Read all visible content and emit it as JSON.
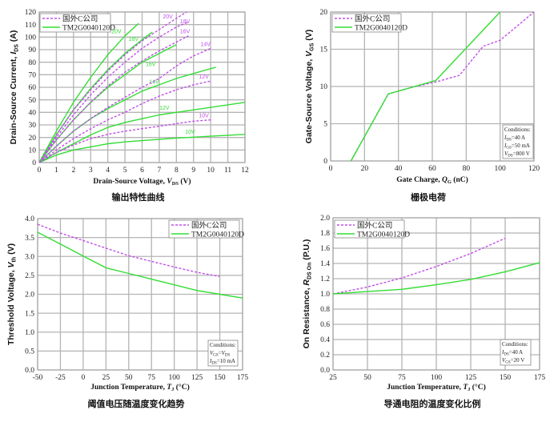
{
  "colors": {
    "competitor": "#c050e8",
    "tm2g": "#33dd33",
    "grid": "#b4b4b4"
  },
  "chart_data": [
    {
      "type": "line",
      "caption": "输出特性曲线",
      "ylabel": {
        "text": "Drain-Source Current, ",
        "var": "I",
        "sub": "DS",
        "unit": " (A)"
      },
      "xlabel": {
        "text": "Drain-Source Voltage, ",
        "var": "V",
        "sub": "DS",
        "unit": " (V)"
      },
      "xlim": [
        0,
        12
      ],
      "ylim": [
        0,
        120
      ],
      "xticks": [
        0,
        1,
        2,
        3,
        4,
        5,
        6,
        7,
        8,
        9,
        10,
        11,
        12
      ],
      "yticks": [
        0,
        10,
        20,
        30,
        40,
        50,
        60,
        70,
        80,
        90,
        100,
        110,
        120
      ],
      "grid": true,
      "legend": {
        "placement": "top-left",
        "entries": [
          "国外C公司",
          "TM2G0040120D"
        ]
      },
      "series": [
        {
          "name": "TM2G0040120D",
          "label": "20V",
          "style": "solid",
          "label_at": [
            4.5,
            103
          ],
          "points": [
            [
              0,
              0
            ],
            [
              1,
              25
            ],
            [
              2,
              48
            ],
            [
              3,
              68
            ],
            [
              4,
              86
            ],
            [
              5,
              101
            ],
            [
              5.8,
              111
            ]
          ]
        },
        {
          "name": "TM2G0040120D",
          "label": "18V",
          "style": "solid",
          "label_at": [
            5.5,
            97
          ],
          "points": [
            [
              0,
              0
            ],
            [
              1,
              22
            ],
            [
              2,
              42
            ],
            [
              3,
              59
            ],
            [
              4,
              74
            ],
            [
              5,
              87
            ],
            [
              6,
              98
            ],
            [
              6.6,
              104
            ]
          ]
        },
        {
          "name": "TM2G0040120D",
          "label": "16V",
          "style": "solid",
          "label_at": [
            6.5,
            77
          ],
          "points": [
            [
              0,
              0
            ],
            [
              1,
              18
            ],
            [
              2,
              34
            ],
            [
              3,
              48
            ],
            [
              4,
              60
            ],
            [
              5,
              70
            ],
            [
              6,
              80
            ],
            [
              7,
              87
            ],
            [
              8,
              94
            ]
          ]
        },
        {
          "name": "TM2G0040120D",
          "label": "14V",
          "style": "solid",
          "label_at": [
            6.7,
            63
          ],
          "points": [
            [
              0,
              0
            ],
            [
              1,
              13
            ],
            [
              2,
              25
            ],
            [
              3,
              35
            ],
            [
              4,
              43
            ],
            [
              5,
              50
            ],
            [
              6,
              57
            ],
            [
              7,
              62
            ],
            [
              8,
              67
            ],
            [
              9,
              71
            ],
            [
              10.3,
              76
            ]
          ]
        },
        {
          "name": "TM2G0040120D",
          "label": "12V",
          "style": "solid",
          "label_at": [
            7.3,
            42
          ],
          "points": [
            [
              0,
              0
            ],
            [
              1,
              8
            ],
            [
              2,
              15
            ],
            [
              3,
              22
            ],
            [
              4,
              28
            ],
            [
              5,
              32
            ],
            [
              6,
              35
            ],
            [
              7,
              38
            ],
            [
              8,
              40
            ],
            [
              9,
              42
            ],
            [
              10,
              44
            ],
            [
              12,
              48
            ]
          ]
        },
        {
          "name": "TM2G0040120D",
          "label": "10V",
          "style": "solid",
          "label_at": [
            8.8,
            23
          ],
          "points": [
            [
              0,
              0
            ],
            [
              1,
              6
            ],
            [
              2,
              10
            ],
            [
              3,
              12.5
            ],
            [
              4,
              15
            ],
            [
              5,
              16.5
            ],
            [
              6,
              17.5
            ],
            [
              8,
              19.5
            ],
            [
              10,
              21
            ],
            [
              12,
              22.5
            ]
          ]
        },
        {
          "name": "国外C公司",
          "label": "20V",
          "style": "dashed",
          "label_at": [
            7.5,
            115
          ],
          "points": [
            [
              0,
              0
            ],
            [
              1,
              22
            ],
            [
              2,
              42
            ],
            [
              3,
              58
            ],
            [
              4,
              73
            ],
            [
              5,
              86
            ],
            [
              6,
              97
            ],
            [
              7,
              106
            ],
            [
              8,
              115
            ],
            [
              8.6,
              120
            ]
          ]
        },
        {
          "name": "国外C公司",
          "label": "18V",
          "style": "dashed",
          "label_at": [
            8.5,
            111
          ],
          "points": [
            [
              0,
              0
            ],
            [
              1,
              20
            ],
            [
              2,
              38
            ],
            [
              3,
              54
            ],
            [
              4,
              68
            ],
            [
              5,
              80
            ],
            [
              6,
              91
            ],
            [
              7,
              100
            ],
            [
              8,
              108
            ],
            [
              8.7,
              112
            ]
          ]
        },
        {
          "name": "国外C公司",
          "label": "16V",
          "style": "dashed",
          "label_at": [
            8.5,
            103
          ],
          "points": [
            [
              0,
              0
            ],
            [
              1,
              18
            ],
            [
              2,
              34
            ],
            [
              3,
              48
            ],
            [
              4,
              61
            ],
            [
              5,
              72
            ],
            [
              6,
              81
            ],
            [
              7,
              89
            ],
            [
              8,
              96
            ],
            [
              8.7,
              101
            ]
          ]
        },
        {
          "name": "国外C公司",
          "label": "14V",
          "style": "dashed",
          "label_at": [
            9.7,
            93
          ],
          "points": [
            [
              0,
              0
            ],
            [
              1,
              13
            ],
            [
              2,
              25
            ],
            [
              3,
              35
            ],
            [
              4,
              44
            ],
            [
              5,
              52
            ],
            [
              6,
              60
            ],
            [
              7,
              67
            ],
            [
              8,
              77
            ],
            [
              9,
              85
            ],
            [
              10,
              91
            ]
          ]
        },
        {
          "name": "国外C公司",
          "label": "12V",
          "style": "dashed",
          "label_at": [
            9.6,
            67
          ],
          "points": [
            [
              0,
              0
            ],
            [
              1,
              10
            ],
            [
              2,
              19
            ],
            [
              3,
              27
            ],
            [
              4,
              34
            ],
            [
              5,
              40
            ],
            [
              6,
              47
            ],
            [
              7,
              53
            ],
            [
              8,
              58
            ],
            [
              9,
              62
            ],
            [
              10,
              65
            ]
          ]
        },
        {
          "name": "国外C公司",
          "label": "10V",
          "style": "dashed",
          "label_at": [
            9.6,
            36
          ],
          "points": [
            [
              0,
              0
            ],
            [
              1,
              8
            ],
            [
              2,
              14
            ],
            [
              3,
              19
            ],
            [
              4,
              22.5
            ],
            [
              5,
              25
            ],
            [
              6,
              27
            ],
            [
              7,
              29
            ],
            [
              8,
              31
            ],
            [
              9,
              33
            ],
            [
              10,
              34
            ]
          ]
        }
      ]
    },
    {
      "type": "line",
      "caption": "栅极电荷",
      "ylabel": {
        "text": "Gate-Source Voltage, ",
        "var": "V",
        "sub": "GS",
        "unit": " (V)"
      },
      "xlabel": {
        "text": "Gate Charge, ",
        "var": "Q",
        "sub": "G",
        "unit": " (nC)"
      },
      "xlim": [
        0,
        120
      ],
      "ylim": [
        0,
        20
      ],
      "xticks": [
        0,
        20,
        40,
        60,
        80,
        100,
        120
      ],
      "yticks": [
        0,
        5,
        10,
        15,
        20
      ],
      "grid": true,
      "legend": {
        "placement": "top-left",
        "entries": [
          "国外C公司",
          "TM2G0040120D"
        ]
      },
      "conditions": [
        {
          "text": "Conditions:"
        },
        {
          "var": "I",
          "sub": "DS",
          "rest": "=40 A"
        },
        {
          "var": "I",
          "sub": "GS",
          "rest": "=50 mA"
        },
        {
          "var": "V",
          "sub": "DS",
          "rest": "=800 V"
        }
      ],
      "series": [
        {
          "name": "国外C公司",
          "style": "dashed",
          "points": [
            [
              12,
              0
            ],
            [
              34,
              9
            ],
            [
              50,
              10
            ],
            [
              62,
              10.6
            ],
            [
              76,
              11.5
            ],
            [
              90,
              15.4
            ],
            [
              100,
              16.2
            ],
            [
              120,
              20
            ]
          ]
        },
        {
          "name": "TM2G0040120D",
          "style": "solid",
          "points": [
            [
              12,
              0
            ],
            [
              34,
              9
            ],
            [
              62,
              10.8
            ],
            [
              100,
              20
            ]
          ]
        }
      ]
    },
    {
      "type": "line",
      "caption": "阈值电压随温度变化趋势",
      "ylabel": {
        "text": "Threshold Voltage, ",
        "var": "V",
        "sub": "th",
        "unit": " (V)"
      },
      "xlabel": {
        "text": "Junction Temperature, ",
        "var": "T",
        "sub": "J",
        "unit": " (°C)"
      },
      "xlim": [
        -50,
        175
      ],
      "ylim": [
        0,
        4
      ],
      "xticks": [
        -50,
        -25,
        0,
        25,
        50,
        75,
        100,
        125,
        150,
        175
      ],
      "yticks": [
        0.0,
        0.5,
        1.0,
        1.5,
        2.0,
        2.5,
        3.0,
        3.5,
        4.0
      ],
      "ytick_decimals": 1,
      "grid": true,
      "legend": {
        "placement": "top-right",
        "entries": [
          "国外C公司",
          "TM2G0040120D"
        ]
      },
      "conditions": [
        {
          "text": "Conditions:"
        },
        {
          "var": "V",
          "sub": "GS",
          "rest": "=",
          "var2": "V",
          "sub2": "DS"
        },
        {
          "var": "I",
          "sub": "DS",
          "rest": "=10 mA"
        }
      ],
      "series": [
        {
          "name": "国外C公司",
          "style": "dashed",
          "points": [
            [
              -50,
              3.85
            ],
            [
              -25,
              3.62
            ],
            [
              0,
              3.42
            ],
            [
              25,
              3.22
            ],
            [
              50,
              3.02
            ],
            [
              75,
              2.87
            ],
            [
              100,
              2.72
            ],
            [
              125,
              2.58
            ],
            [
              150,
              2.47
            ]
          ]
        },
        {
          "name": "TM2G0040120D",
          "style": "solid",
          "points": [
            [
              -50,
              3.64
            ],
            [
              -25,
              3.33
            ],
            [
              0,
              3.01
            ],
            [
              25,
              2.7
            ],
            [
              50,
              2.55
            ],
            [
              75,
              2.4
            ],
            [
              100,
              2.25
            ],
            [
              125,
              2.1
            ],
            [
              150,
              2.0
            ],
            [
              175,
              1.9
            ]
          ]
        }
      ]
    },
    {
      "type": "line",
      "caption": "导通电阻的温度变化比例",
      "ylabel": {
        "text": "On Resistance, ",
        "var": "R",
        "sub": "DS On",
        "unit": " (P.U.)"
      },
      "xlabel": {
        "text": "Junction Temperature, ",
        "var": "T",
        "sub": "J",
        "unit": " (°C)"
      },
      "xlim": [
        25,
        175
      ],
      "ylim": [
        0,
        2
      ],
      "xticks": [
        25,
        50,
        75,
        100,
        125,
        150,
        175
      ],
      "yticks": [
        0.0,
        0.2,
        0.4,
        0.6,
        0.8,
        1.0,
        1.2,
        1.4,
        1.6,
        1.8,
        2.0
      ],
      "ytick_decimals": 1,
      "grid": true,
      "legend": {
        "placement": "top-left",
        "entries": [
          "国外C公司",
          "TM2G0040120D"
        ]
      },
      "conditions": [
        {
          "text": "Conditions:"
        },
        {
          "var": "I",
          "sub": "DS",
          "rest": "=40 A"
        },
        {
          "var": "V",
          "sub": "GS",
          "rest": "=20 V"
        }
      ],
      "series": [
        {
          "name": "国外C公司",
          "style": "dashed",
          "points": [
            [
              25,
              1.0
            ],
            [
              50,
              1.09
            ],
            [
              75,
              1.21
            ],
            [
              100,
              1.36
            ],
            [
              125,
              1.53
            ],
            [
              150,
              1.73
            ]
          ]
        },
        {
          "name": "TM2G0040120D",
          "style": "solid",
          "points": [
            [
              25,
              1.0
            ],
            [
              50,
              1.03
            ],
            [
              75,
              1.06
            ],
            [
              100,
              1.12
            ],
            [
              125,
              1.19
            ],
            [
              150,
              1.29
            ],
            [
              175,
              1.41
            ]
          ]
        }
      ]
    }
  ]
}
